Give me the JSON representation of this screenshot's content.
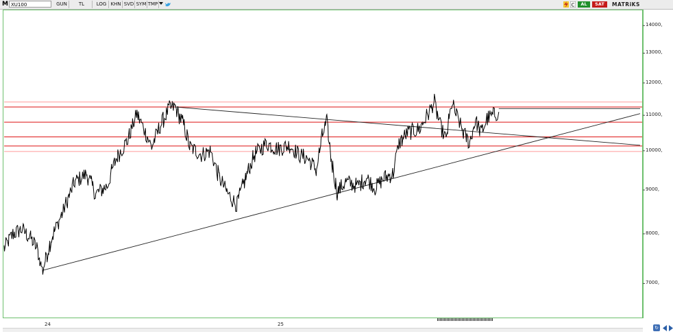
{
  "toolbar": {
    "m_label": "M",
    "symbol": "XU100",
    "buttons": [
      "GUN",
      "TL",
      "LOG",
      "KHN",
      "SVD",
      "SYM",
      "TMP"
    ],
    "al_label": "AL",
    "sat_label": "SAT",
    "brand": "MATRiKS"
  },
  "chart_data": {
    "type": "line",
    "title": "",
    "series_name": "XU100",
    "ylim": [
      6400,
      14400
    ],
    "y_ticks": [
      7000,
      8000,
      9000,
      10000,
      11000,
      12000,
      13000,
      14000
    ],
    "y_tick_labels": [
      "7000,",
      "8000,",
      "9000,",
      "10000,",
      "11000,",
      "12000,",
      "13000,",
      "14000,"
    ],
    "x_tick_labels": [
      "24",
      "25"
    ],
    "keypoints": [
      {
        "i": 0,
        "y": 7700
      },
      {
        "i": 6,
        "y": 8000
      },
      {
        "i": 12,
        "y": 8100
      },
      {
        "i": 18,
        "y": 7900
      },
      {
        "i": 22,
        "y": 7700
      },
      {
        "i": 26,
        "y": 7250
      },
      {
        "i": 32,
        "y": 7900
      },
      {
        "i": 40,
        "y": 8500
      },
      {
        "i": 48,
        "y": 9200
      },
      {
        "i": 56,
        "y": 9400
      },
      {
        "i": 62,
        "y": 8900
      },
      {
        "i": 70,
        "y": 9100
      },
      {
        "i": 76,
        "y": 9800
      },
      {
        "i": 84,
        "y": 10300
      },
      {
        "i": 90,
        "y": 11050
      },
      {
        "i": 96,
        "y": 10500
      },
      {
        "i": 100,
        "y": 10100
      },
      {
        "i": 106,
        "y": 10700
      },
      {
        "i": 112,
        "y": 11200
      },
      {
        "i": 116,
        "y": 11250
      },
      {
        "i": 122,
        "y": 10700
      },
      {
        "i": 126,
        "y": 10100
      },
      {
        "i": 134,
        "y": 9900
      },
      {
        "i": 140,
        "y": 10000
      },
      {
        "i": 146,
        "y": 9300
      },
      {
        "i": 152,
        "y": 8900
      },
      {
        "i": 158,
        "y": 8650
      },
      {
        "i": 164,
        "y": 9300
      },
      {
        "i": 170,
        "y": 9900
      },
      {
        "i": 178,
        "y": 10200
      },
      {
        "i": 186,
        "y": 10050
      },
      {
        "i": 194,
        "y": 10150
      },
      {
        "i": 200,
        "y": 9900
      },
      {
        "i": 206,
        "y": 9800
      },
      {
        "i": 212,
        "y": 9500
      },
      {
        "i": 216,
        "y": 10400
      },
      {
        "i": 219,
        "y": 10800
      },
      {
        "i": 222,
        "y": 9800
      },
      {
        "i": 226,
        "y": 8950
      },
      {
        "i": 232,
        "y": 9200
      },
      {
        "i": 240,
        "y": 9100
      },
      {
        "i": 246,
        "y": 9300
      },
      {
        "i": 252,
        "y": 9050
      },
      {
        "i": 258,
        "y": 9300
      },
      {
        "i": 264,
        "y": 9400
      },
      {
        "i": 268,
        "y": 10200
      },
      {
        "i": 274,
        "y": 10500
      },
      {
        "i": 282,
        "y": 10600
      },
      {
        "i": 288,
        "y": 11050
      },
      {
        "i": 292,
        "y": 11400
      },
      {
        "i": 296,
        "y": 10700
      },
      {
        "i": 300,
        "y": 10300
      },
      {
        "i": 304,
        "y": 11350
      },
      {
        "i": 308,
        "y": 10900
      },
      {
        "i": 312,
        "y": 10500
      },
      {
        "i": 316,
        "y": 10200
      },
      {
        "i": 320,
        "y": 10850
      },
      {
        "i": 324,
        "y": 10500
      },
      {
        "i": 328,
        "y": 10900
      },
      {
        "i": 332,
        "y": 11000
      },
      {
        "i": 336,
        "y": 11100
      }
    ],
    "horizontal_levels": [
      11400,
      11250,
      10800,
      10380,
      10130,
      9980
    ],
    "horizontal_level_colors": [
      "#ff9a9a",
      "#d11",
      "#d11",
      "#d11",
      "#d11",
      "#ff9a9a"
    ],
    "trendlines": [
      {
        "from": [
          26,
          7250
        ],
        "to": [
          432,
          11050
        ]
      },
      {
        "from": [
          116,
          11250
        ],
        "to": [
          432,
          10150
        ]
      },
      {
        "from": [
          336,
          11200
        ],
        "to": [
          432,
          11200
        ]
      }
    ],
    "grid": false,
    "legend": "none"
  }
}
